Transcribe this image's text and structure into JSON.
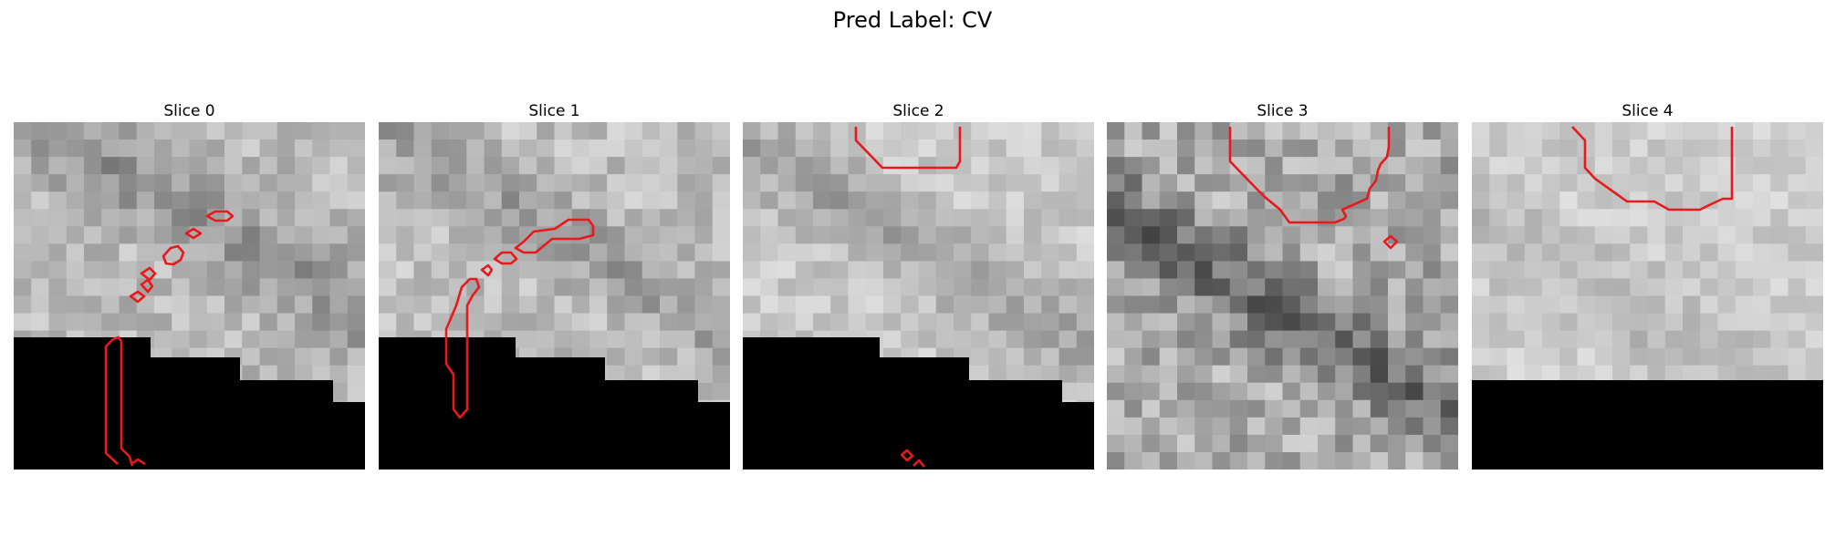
{
  "figure": {
    "title": "Pred Label: CV",
    "contour_color": "#e8191c",
    "mask_color": "#000000"
  },
  "slices": [
    {
      "title": "Slice 0"
    },
    {
      "title": "Slice 1"
    },
    {
      "title": "Slice 2"
    },
    {
      "title": "Slice 3"
    },
    {
      "title": "Slice 4"
    }
  ]
}
